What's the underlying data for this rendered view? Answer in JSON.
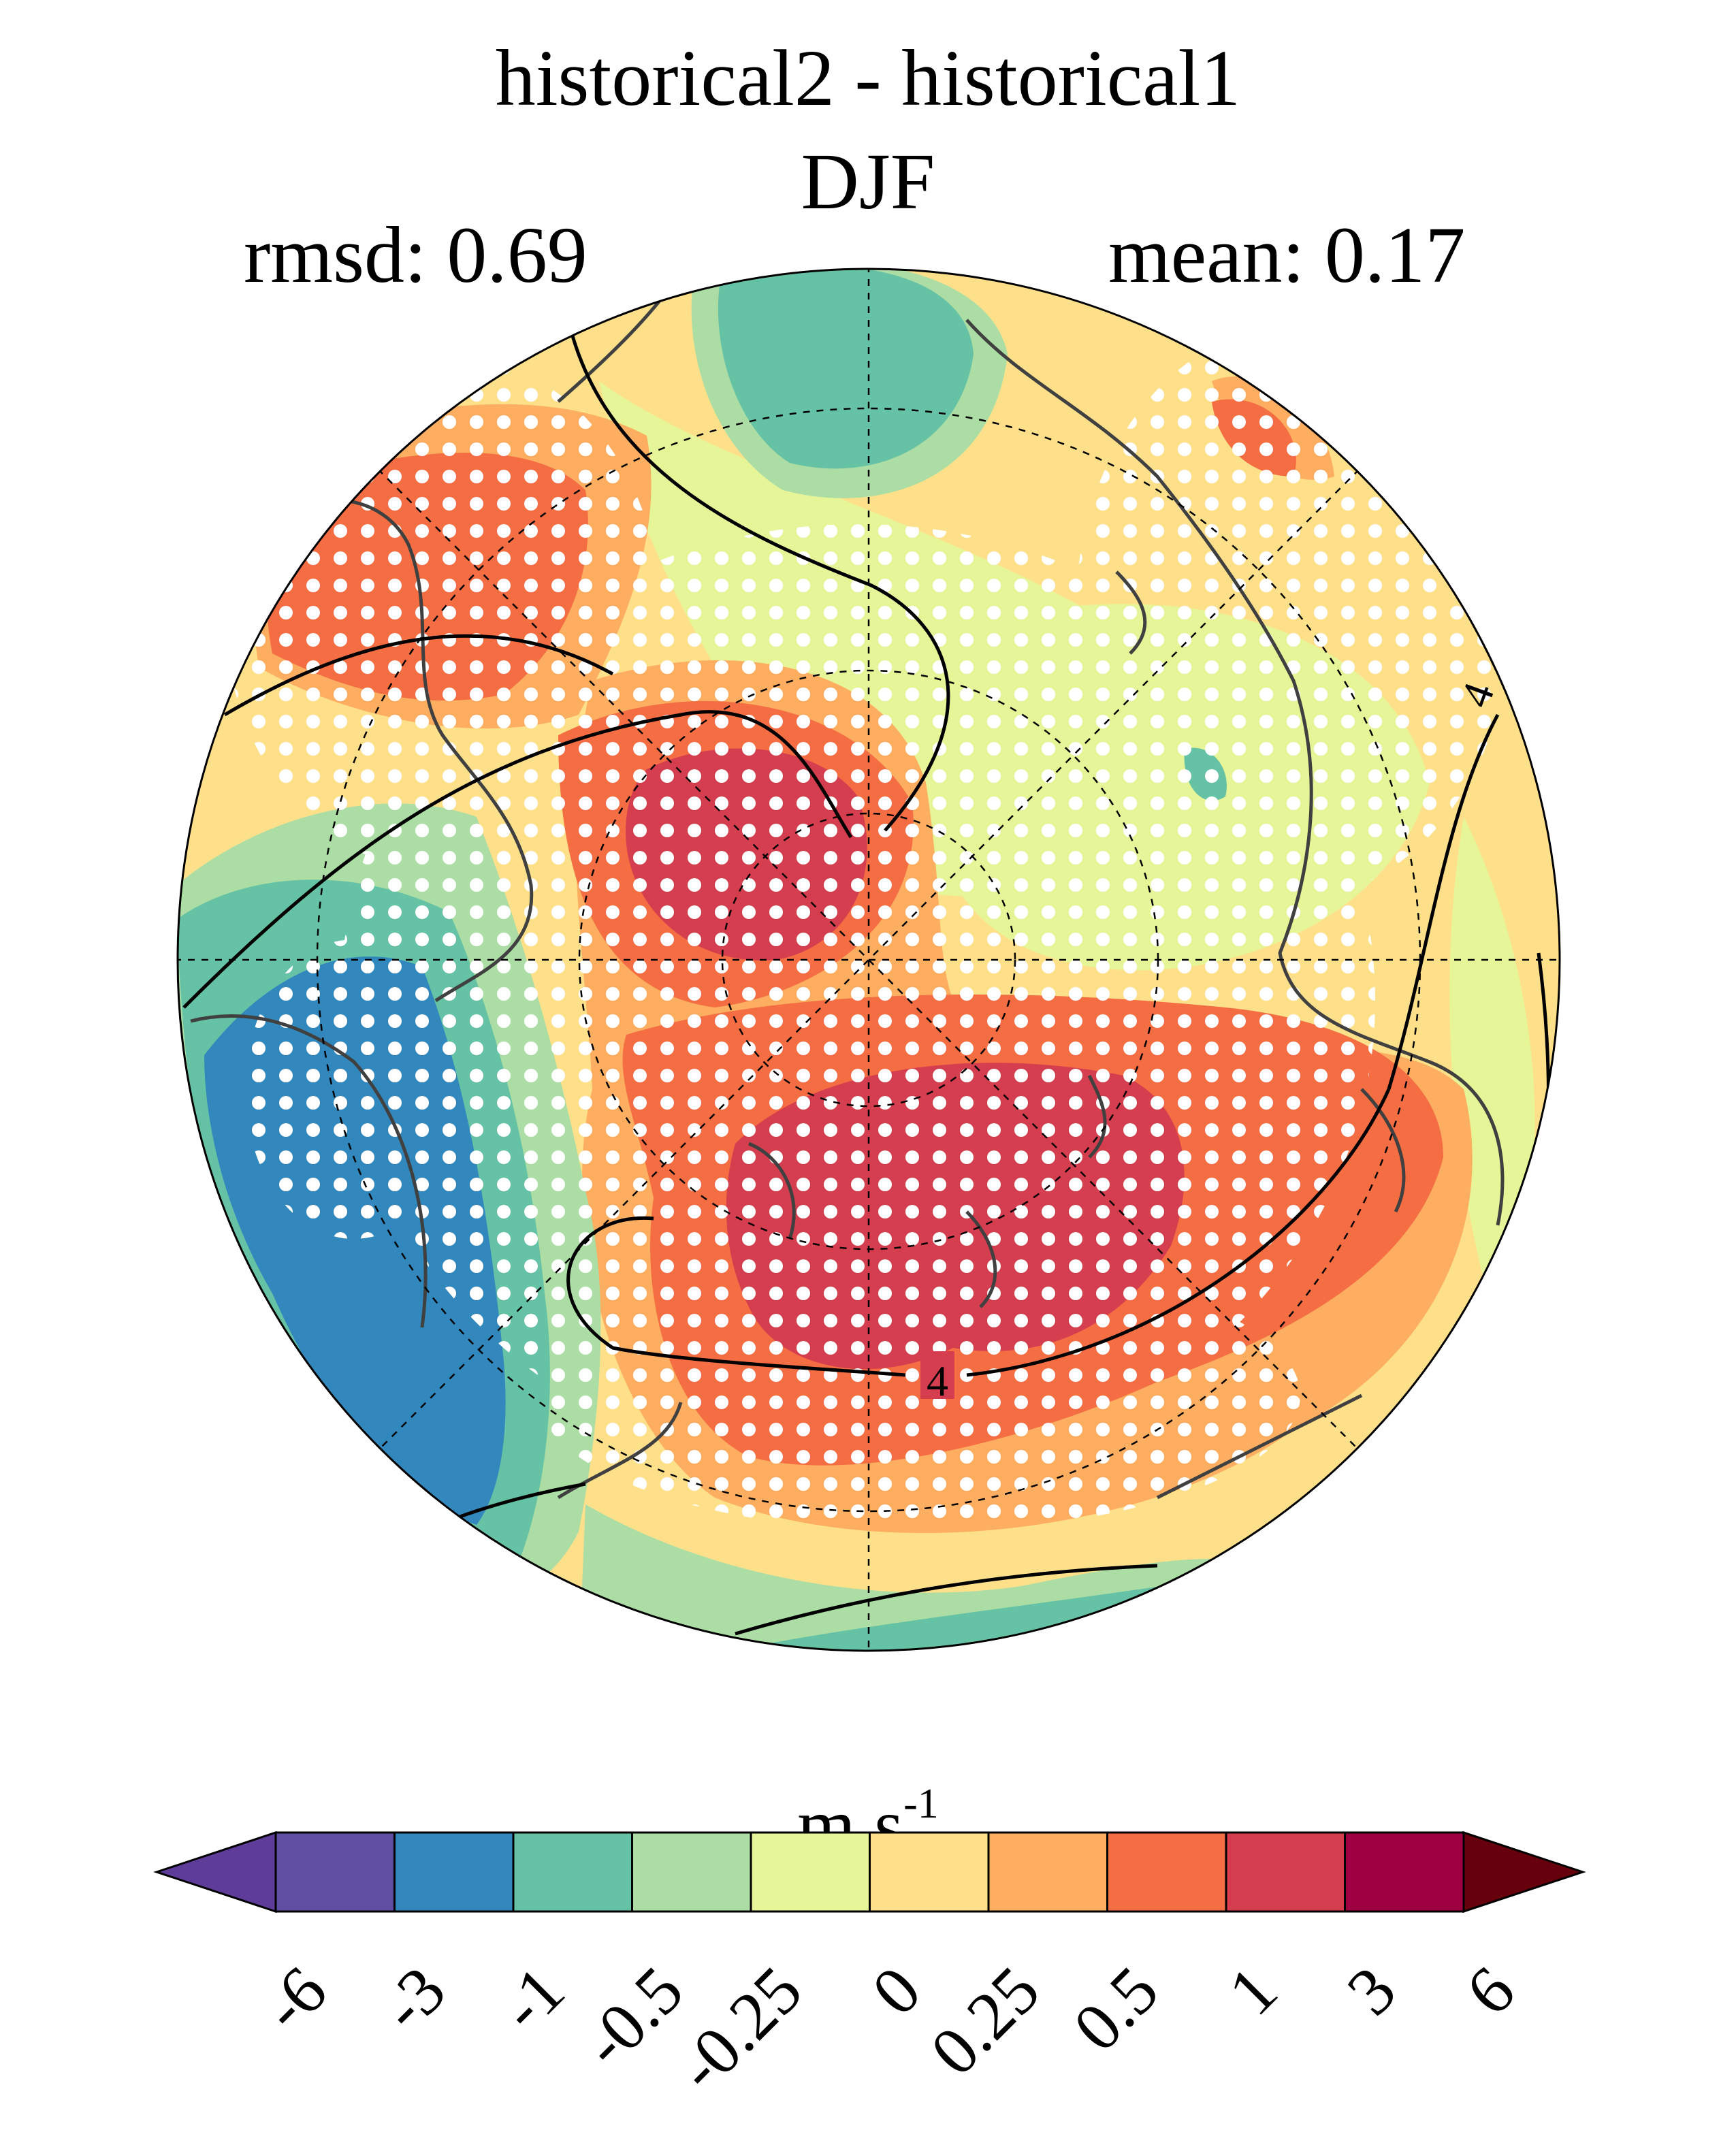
{
  "title": "historical2 - historical1",
  "season": "DJF",
  "stats": {
    "rmsd_label": "rmsd: 0.69",
    "mean_label": "mean: 0.17"
  },
  "colorbar": {
    "unit_base": "m s",
    "unit_exponent": "-1",
    "tick_labels": [
      "-6",
      "-3",
      "-1",
      "-0.5",
      "-0.25",
      "0",
      "0.25",
      "0.5",
      "1",
      "3",
      "6"
    ],
    "colors": [
      "#5e3c99",
      "#5e4fa2",
      "#3288bd",
      "#66c2a5",
      "#abdda4",
      "#e6f598",
      "#fee08b",
      "#fdae61",
      "#f46d43",
      "#d53e4f",
      "#9e0142",
      "#67000d"
    ],
    "extend": "both"
  },
  "map": {
    "projection": "north-polar-stereographic",
    "background_color": "#fee08b",
    "stippling": "white dots mark significant regions",
    "contour_label": "4",
    "contour_line_color": "#000000",
    "coastline_color": "#404040",
    "gridline_style": "dashed"
  }
}
